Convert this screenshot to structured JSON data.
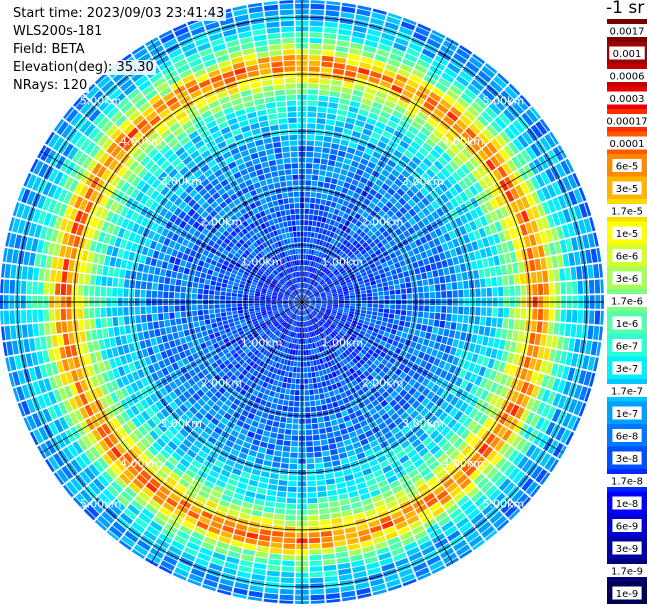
{
  "header": {
    "start_time": "Start time: 2023/09/03 23:41:43",
    "instrument": "WLS200s-181",
    "field": "Field: BETA",
    "elevation": "Elevation(deg): 35.30",
    "nrays": "NRays: 120"
  },
  "colorbar": {
    "unit": "-1 sr",
    "levels": [
      {
        "label": "0.0017",
        "color": "#7a0000"
      },
      {
        "label": "0.001",
        "color": "#9e0000"
      },
      {
        "label": "0.0006",
        "color": "#c40000"
      },
      {
        "label": "0.0003",
        "color": "#ea0000"
      },
      {
        "label": "0.00017",
        "color": "#ff2a00"
      },
      {
        "label": "0.0001",
        "color": "#ff5a00"
      },
      {
        "label": "6e-5",
        "color": "#ff8a00"
      },
      {
        "label": "3e-5",
        "color": "#ffb400"
      },
      {
        "label": "1.7e-5",
        "color": "#ffdc00"
      },
      {
        "label": "1e-5",
        "color": "#ffff00"
      },
      {
        "label": "6e-6",
        "color": "#d4ff2b"
      },
      {
        "label": "3e-6",
        "color": "#a8ff57"
      },
      {
        "label": "1.7e-6",
        "color": "#7dff82"
      },
      {
        "label": "1e-6",
        "color": "#52ffad"
      },
      {
        "label": "6e-7",
        "color": "#2bffd4"
      },
      {
        "label": "3e-7",
        "color": "#00f0ff"
      },
      {
        "label": "1.7e-7",
        "color": "#00c8ff"
      },
      {
        "label": "1e-7",
        "color": "#00a0ff"
      },
      {
        "label": "6e-8",
        "color": "#0078ff"
      },
      {
        "label": "3e-8",
        "color": "#0050ff"
      },
      {
        "label": "1.7e-8",
        "color": "#0028ff"
      },
      {
        "label": "1e-8",
        "color": "#0000ff"
      },
      {
        "label": "6e-9",
        "color": "#0000d2"
      },
      {
        "label": "3e-9",
        "color": "#0000a8"
      },
      {
        "label": "1.7e-9",
        "color": "#00007e"
      },
      {
        "label": "1e-9",
        "color": "#000054"
      }
    ]
  },
  "chart_data": {
    "type": "heatmap",
    "projection": "polar-ppi",
    "nrays": 120,
    "range_max_km": 5.3,
    "ring_labels": [
      "1.00km",
      "2.00km",
      "3.00km",
      "4.00km",
      "5.00km"
    ],
    "radial_profile_km": [
      {
        "r": 0.0,
        "level": 19
      },
      {
        "r": 0.5,
        "level": 20
      },
      {
        "r": 1.0,
        "level": 19
      },
      {
        "r": 1.5,
        "level": 19
      },
      {
        "r": 2.0,
        "level": 18
      },
      {
        "r": 2.5,
        "level": 18
      },
      {
        "r": 3.0,
        "level": 16
      },
      {
        "r": 3.4,
        "level": 15
      },
      {
        "r": 3.7,
        "level": 12
      },
      {
        "r": 3.95,
        "level": 8
      },
      {
        "r": 4.1,
        "level": 5
      },
      {
        "r": 4.25,
        "level": 7
      },
      {
        "r": 4.45,
        "level": 12
      },
      {
        "r": 4.8,
        "level": 16
      },
      {
        "r": 5.3,
        "level": 18
      }
    ]
  }
}
